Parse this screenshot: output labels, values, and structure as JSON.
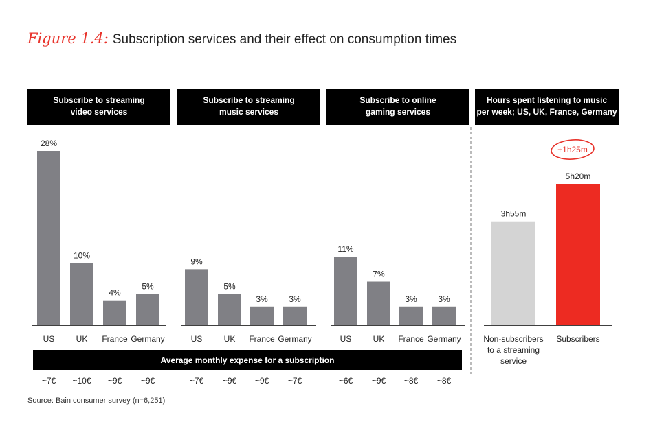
{
  "title": {
    "figure_label": "Figure 1.4:",
    "text": "Subscription services and their effect on consumption times"
  },
  "source": "Source: Bain consumer survey (n=6,251)",
  "expense_banner": "Average monthly expense for a subscription",
  "colors": {
    "bar": "#808085",
    "non_subscriber": "#d4d4d4",
    "subscriber": "#ed2b22",
    "banner": "#000000",
    "accent": "#e8322a"
  },
  "chart_data": [
    {
      "type": "bar",
      "title": "Subscribe to streaming video services",
      "title_lines": [
        "Subscribe to streaming",
        "video services"
      ],
      "categories": [
        "US",
        "UK",
        "France",
        "Germany"
      ],
      "values": [
        28,
        10,
        4,
        5
      ],
      "labels": [
        "28%",
        "10%",
        "4%",
        "5%"
      ],
      "expenses": [
        "~7€",
        "~10€",
        "~9€",
        "~9€"
      ],
      "unit": "%",
      "ylim": [
        0,
        28
      ]
    },
    {
      "type": "bar",
      "title": "Subscribe to streaming music services",
      "title_lines": [
        "Subscribe to streaming",
        "music services"
      ],
      "categories": [
        "US",
        "UK",
        "France",
        "Germany"
      ],
      "values": [
        9,
        5,
        3,
        3
      ],
      "labels": [
        "9%",
        "5%",
        "3%",
        "3%"
      ],
      "expenses": [
        "~7€",
        "~9€",
        "~9€",
        "~7€"
      ],
      "unit": "%",
      "ylim": [
        0,
        28
      ]
    },
    {
      "type": "bar",
      "title": "Subscribe to online gaming services",
      "title_lines": [
        "Subscribe to online",
        "gaming services"
      ],
      "categories": [
        "US",
        "UK",
        "France",
        "Germany"
      ],
      "values": [
        11,
        7,
        3,
        3
      ],
      "labels": [
        "11%",
        "7%",
        "3%",
        "3%"
      ],
      "expenses": [
        "~6€",
        "~9€",
        "~8€",
        "~8€"
      ],
      "unit": "%",
      "ylim": [
        0,
        28
      ]
    },
    {
      "type": "bar",
      "title": "Hours spent listening to music per week; US, UK, France, Germany",
      "title_lines": [
        "Hours spent listening to music",
        "per week; US, UK, France, Germany"
      ],
      "categories": [
        "Non-subscribers to a streaming service",
        "Subscribers"
      ],
      "category_lines": [
        [
          "Non-subscribers",
          "to a streaming",
          "service"
        ],
        [
          "Subscribers"
        ]
      ],
      "values": [
        235,
        320
      ],
      "labels": [
        "3h55m",
        "5h20m"
      ],
      "unit": "minutes per week",
      "difference_annotation": "+1h25m",
      "ylim": [
        0,
        320
      ]
    }
  ]
}
